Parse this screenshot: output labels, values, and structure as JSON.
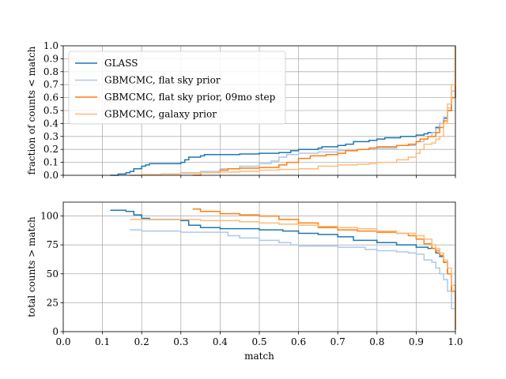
{
  "colors": {
    "GLASS": "#1f77b4",
    "GBMCMC_flat": "#aec7e8",
    "GBMCMC_flat_09mo": "#ff7f0e",
    "GBMCMC_galaxy": "#ffbb78",
    "grid": "#b0b0b0"
  },
  "chart_data": [
    {
      "type": "line",
      "title": "",
      "xlabel": "",
      "ylabel": "fraction of counts < match",
      "xlim": [
        0.0,
        1.0
      ],
      "ylim": [
        0.0,
        1.0
      ],
      "xticks": [
        "0.0",
        "0.1",
        "0.2",
        "0.3",
        "0.4",
        "0.5",
        "0.6",
        "0.7",
        "0.8",
        "0.9",
        "1.0"
      ],
      "yticks": [
        "0.0",
        "0.1",
        "0.2",
        "0.3",
        "0.4",
        "0.5",
        "0.6",
        "0.7",
        "0.8",
        "0.9",
        "1.0"
      ],
      "xticklabels_visible": false,
      "grid": true,
      "legend": "top-left",
      "series": [
        {
          "name": "GLASS",
          "color_key": "GLASS",
          "x": [
            0.12,
            0.14,
            0.16,
            0.17,
            0.18,
            0.2,
            0.21,
            0.22,
            0.25,
            0.3,
            0.31,
            0.32,
            0.35,
            0.36,
            0.4,
            0.45,
            0.5,
            0.55,
            0.58,
            0.6,
            0.65,
            0.66,
            0.7,
            0.72,
            0.74,
            0.78,
            0.8,
            0.82,
            0.86,
            0.9,
            0.92,
            0.93,
            0.95,
            0.96,
            0.97,
            0.98,
            0.99,
            1.0
          ],
          "y": [
            0.0,
            0.01,
            0.02,
            0.03,
            0.05,
            0.07,
            0.08,
            0.09,
            0.09,
            0.1,
            0.12,
            0.14,
            0.15,
            0.16,
            0.16,
            0.165,
            0.17,
            0.175,
            0.19,
            0.2,
            0.21,
            0.22,
            0.23,
            0.24,
            0.26,
            0.27,
            0.28,
            0.29,
            0.3,
            0.31,
            0.32,
            0.33,
            0.37,
            0.4,
            0.44,
            0.5,
            0.6,
            1.0
          ]
        },
        {
          "name": "GBMCMC, flat sky prior",
          "color_key": "GBMCMC_flat",
          "x": [
            0.17,
            0.2,
            0.25,
            0.3,
            0.35,
            0.4,
            0.45,
            0.5,
            0.53,
            0.55,
            0.57,
            0.6,
            0.65,
            0.7,
            0.75,
            0.8,
            0.85,
            0.9,
            0.92,
            0.93,
            0.94,
            0.95,
            0.96,
            0.97,
            0.98,
            0.99,
            1.0
          ],
          "y": [
            0.0,
            0.005,
            0.01,
            0.02,
            0.03,
            0.05,
            0.07,
            0.09,
            0.11,
            0.14,
            0.16,
            0.17,
            0.18,
            0.19,
            0.2,
            0.21,
            0.23,
            0.26,
            0.28,
            0.3,
            0.33,
            0.36,
            0.4,
            0.45,
            0.52,
            0.65,
            1.0
          ]
        },
        {
          "name": "GBMCMC, flat sky prior, 09mo step",
          "color_key": "GBMCMC_flat_09mo",
          "x": [
            0.33,
            0.35,
            0.4,
            0.42,
            0.45,
            0.5,
            0.55,
            0.57,
            0.6,
            0.63,
            0.67,
            0.7,
            0.72,
            0.75,
            0.78,
            0.8,
            0.85,
            0.88,
            0.9,
            0.91,
            0.93,
            0.95,
            0.96,
            0.97,
            0.98,
            0.99,
            1.0
          ],
          "y": [
            0.0,
            0.02,
            0.04,
            0.05,
            0.055,
            0.06,
            0.08,
            0.1,
            0.13,
            0.15,
            0.16,
            0.17,
            0.19,
            0.2,
            0.21,
            0.22,
            0.23,
            0.24,
            0.26,
            0.28,
            0.3,
            0.33,
            0.37,
            0.42,
            0.5,
            0.6,
            1.0
          ]
        },
        {
          "name": "GBMCMC, galaxy prior",
          "color_key": "GBMCMC_galaxy",
          "x": [
            0.17,
            0.2,
            0.25,
            0.3,
            0.35,
            0.4,
            0.45,
            0.5,
            0.55,
            0.6,
            0.64,
            0.65,
            0.7,
            0.75,
            0.78,
            0.8,
            0.85,
            0.88,
            0.9,
            0.91,
            0.92,
            0.94,
            0.95,
            0.96,
            0.97,
            0.98,
            0.99,
            1.0
          ],
          "y": [
            0.0,
            0.005,
            0.01,
            0.015,
            0.02,
            0.025,
            0.03,
            0.04,
            0.045,
            0.05,
            0.05,
            0.07,
            0.08,
            0.085,
            0.09,
            0.1,
            0.12,
            0.14,
            0.17,
            0.2,
            0.24,
            0.25,
            0.28,
            0.3,
            0.4,
            0.55,
            0.7,
            1.0
          ]
        }
      ]
    },
    {
      "type": "line",
      "title": "",
      "xlabel": "match",
      "ylabel": "total counts > match",
      "xlim": [
        0.0,
        1.0
      ],
      "ylim": [
        0,
        112
      ],
      "xticks": [
        "0.0",
        "0.1",
        "0.2",
        "0.3",
        "0.4",
        "0.5",
        "0.6",
        "0.7",
        "0.8",
        "0.9",
        "1.0"
      ],
      "yticks": [
        "0",
        "25",
        "50",
        "75",
        "100"
      ],
      "grid": true,
      "series": [
        {
          "name": "GLASS",
          "color_key": "GLASS",
          "x": [
            0.12,
            0.16,
            0.18,
            0.2,
            0.22,
            0.3,
            0.32,
            0.35,
            0.4,
            0.5,
            0.56,
            0.6,
            0.65,
            0.7,
            0.74,
            0.8,
            0.85,
            0.9,
            0.93,
            0.95,
            0.96,
            0.97,
            0.98,
            0.99,
            1.0
          ],
          "y": [
            105,
            104,
            101,
            98,
            97,
            96,
            92,
            90,
            89,
            88,
            87,
            85,
            84,
            82,
            79,
            77,
            75,
            73,
            72,
            68,
            65,
            60,
            50,
            35,
            2
          ]
        },
        {
          "name": "GBMCMC, flat sky prior",
          "color_key": "GBMCMC_flat",
          "x": [
            0.17,
            0.2,
            0.3,
            0.42,
            0.45,
            0.5,
            0.55,
            0.58,
            0.6,
            0.65,
            0.7,
            0.77,
            0.8,
            0.85,
            0.88,
            0.9,
            0.92,
            0.94,
            0.95,
            0.96,
            0.97,
            0.98,
            0.99,
            1.0
          ],
          "y": [
            88,
            87,
            86,
            83,
            81,
            79,
            77,
            75,
            74,
            74,
            73,
            71,
            70,
            69,
            68,
            67,
            62,
            60,
            55,
            50,
            45,
            35,
            20,
            2
          ]
        },
        {
          "name": "GBMCMC, flat sky prior, 09mo step",
          "color_key": "GBMCMC_flat_09mo",
          "x": [
            0.33,
            0.35,
            0.4,
            0.45,
            0.5,
            0.55,
            0.6,
            0.65,
            0.7,
            0.75,
            0.8,
            0.85,
            0.88,
            0.9,
            0.92,
            0.94,
            0.95,
            0.96,
            0.97,
            0.98,
            0.99,
            1.0
          ],
          "y": [
            106,
            104,
            102,
            101,
            100,
            97,
            94,
            90,
            88,
            87,
            86,
            85,
            83,
            80,
            76,
            72,
            70,
            66,
            60,
            50,
            35,
            2
          ]
        },
        {
          "name": "GBMCMC, galaxy prior",
          "color_key": "GBMCMC_galaxy",
          "x": [
            0.17,
            0.2,
            0.3,
            0.35,
            0.4,
            0.45,
            0.5,
            0.55,
            0.6,
            0.65,
            0.7,
            0.75,
            0.8,
            0.85,
            0.9,
            0.92,
            0.94,
            0.95,
            0.96,
            0.97,
            0.98,
            0.99,
            1.0
          ],
          "y": [
            97,
            97,
            97,
            96,
            96,
            95,
            94,
            93,
            92,
            91,
            90,
            89,
            87,
            85,
            83,
            80,
            75,
            72,
            68,
            62,
            55,
            40,
            2
          ]
        }
      ]
    }
  ]
}
